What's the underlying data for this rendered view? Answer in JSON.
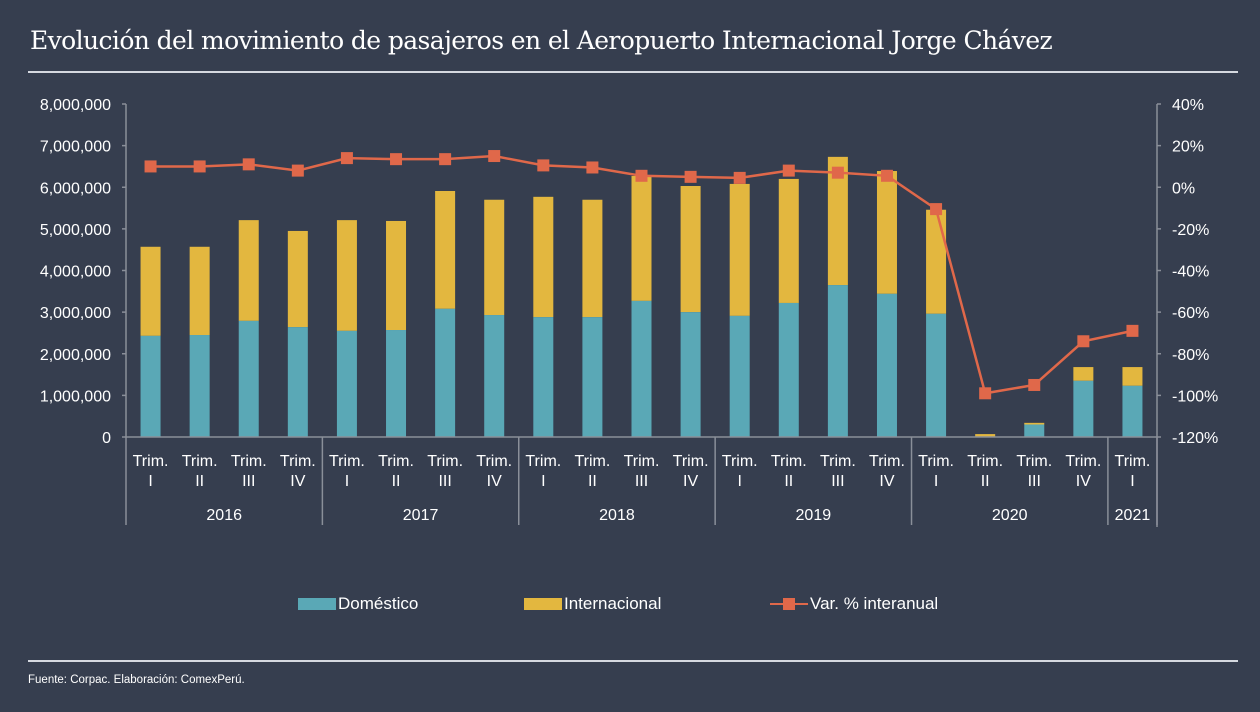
{
  "title": "Evolución del movimiento de pasajeros en el Aeropuerto Internacional Jorge Chávez",
  "source": "Fuente: Corpac. Elaboración: ComexPerú.",
  "colors": {
    "background": "#363e4f",
    "domestico": "#5aa8b6",
    "internacional": "#e3b73f",
    "variacion": "#e0684a",
    "axis": "#8a8f99"
  },
  "legend": [
    {
      "key": "domestico",
      "label": "Doméstico"
    },
    {
      "key": "internacional",
      "label": "Internacional"
    },
    {
      "key": "variacion",
      "label": "Var. % interanual"
    }
  ],
  "chart_data": {
    "type": "bar",
    "stacked": true,
    "title": "Evolución del movimiento de pasajeros en el Aeropuerto Internacional Jorge Chávez",
    "xlabel": "",
    "ylabel": "",
    "y2label": "",
    "ylim": [
      0,
      8000000
    ],
    "y2lim": [
      -120,
      40
    ],
    "yticks": [
      "0",
      "1,000,000",
      "2,000,000",
      "3,000,000",
      "4,000,000",
      "5,000,000",
      "6,000,000",
      "7,000,000",
      "8,000,000"
    ],
    "y2ticks": [
      "-120%",
      "-100%",
      "-80%",
      "-60%",
      "-40%",
      "-20%",
      "0%",
      "20%",
      "40%"
    ],
    "grid": false,
    "legend_position": "bottom",
    "groups": [
      {
        "year": "2016",
        "quarters": [
          "Trim. I",
          "Trim. II",
          "Trim. III",
          "Trim. IV"
        ]
      },
      {
        "year": "2017",
        "quarters": [
          "Trim. I",
          "Trim. II",
          "Trim. III",
          "Trim. IV"
        ]
      },
      {
        "year": "2018",
        "quarters": [
          "Trim. I",
          "Trim. II",
          "Trim. III",
          "Trim. IV"
        ]
      },
      {
        "year": "2019",
        "quarters": [
          "Trim. I",
          "Trim. II",
          "Trim. III",
          "Trim. IV"
        ]
      },
      {
        "year": "2020",
        "quarters": [
          "Trim. I",
          "Trim. II",
          "Trim. III",
          "Trim. IV"
        ]
      },
      {
        "year": "2021",
        "quarters": [
          "Trim. I"
        ]
      }
    ],
    "categories": [
      "2016 Trim. I",
      "2016 Trim. II",
      "2016 Trim. III",
      "2016 Trim. IV",
      "2017 Trim. I",
      "2017 Trim. II",
      "2017 Trim. III",
      "2017 Trim. IV",
      "2018 Trim. I",
      "2018 Trim. II",
      "2018 Trim. III",
      "2018 Trim. IV",
      "2019 Trim. I",
      "2019 Trim. II",
      "2019 Trim. III",
      "2019 Trim. IV",
      "2020 Trim. I",
      "2020 Trim. II",
      "2020 Trim. III",
      "2020 Trim. IV",
      "2021 Trim. I"
    ],
    "series": [
      {
        "name": "Doméstico",
        "type": "bar",
        "axis": "left",
        "values": [
          2430000,
          2450000,
          2790000,
          2640000,
          2550000,
          2570000,
          3080000,
          2930000,
          2880000,
          2880000,
          3270000,
          3000000,
          2910000,
          3220000,
          3650000,
          3440000,
          2960000,
          10000,
          300000,
          1350000,
          1230000
        ]
      },
      {
        "name": "Internacional",
        "type": "bar",
        "axis": "left",
        "values": [
          2140000,
          2120000,
          2420000,
          2310000,
          2660000,
          2620000,
          2830000,
          2770000,
          2890000,
          2820000,
          3000000,
          3030000,
          3170000,
          2980000,
          3080000,
          2950000,
          2500000,
          60000,
          40000,
          330000,
          450000
        ]
      },
      {
        "name": "Var. % interanual",
        "type": "line",
        "axis": "right",
        "unit": "%",
        "values": [
          10,
          10,
          11,
          8,
          14,
          13.5,
          13.5,
          15,
          10.5,
          9.5,
          5.5,
          5,
          4.5,
          8,
          7,
          5.5,
          -10.5,
          -99,
          -95,
          -74,
          -69
        ]
      }
    ]
  }
}
